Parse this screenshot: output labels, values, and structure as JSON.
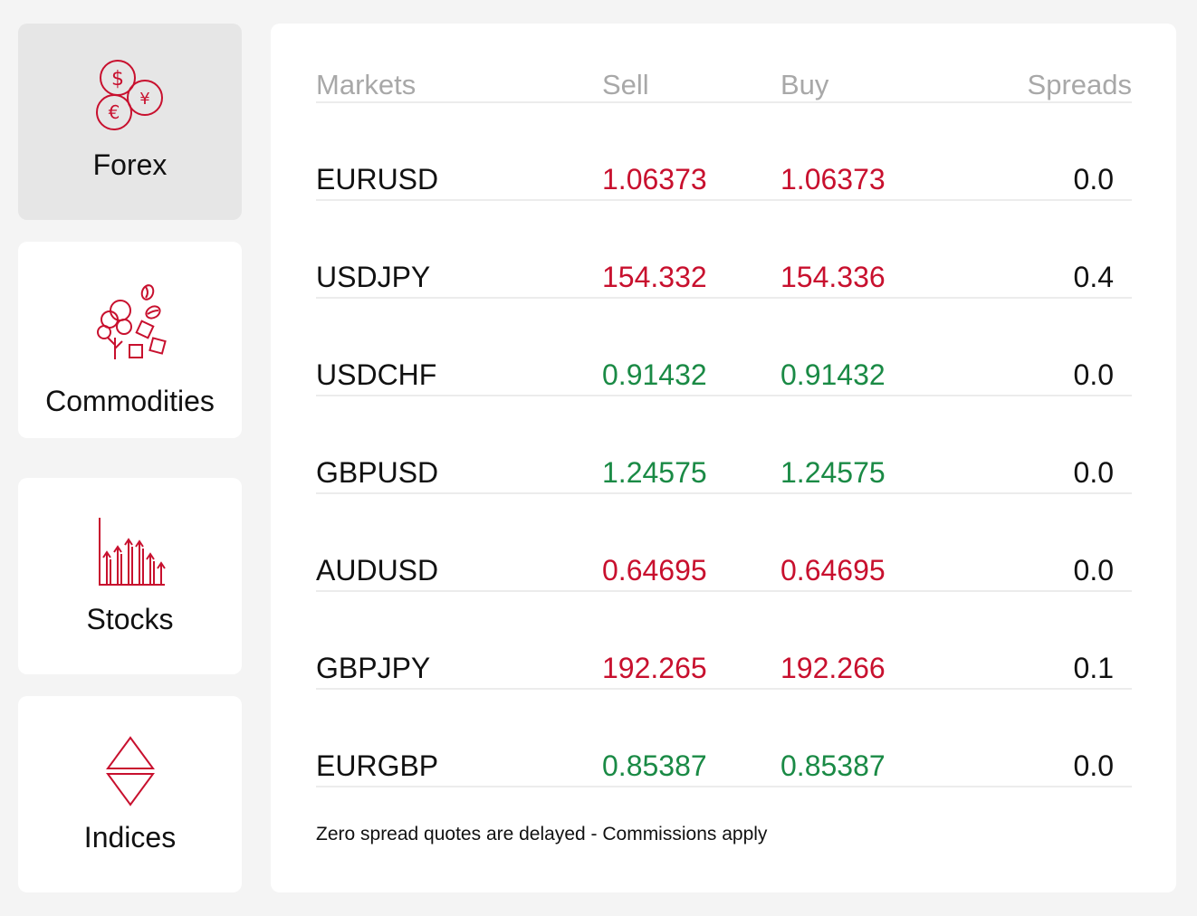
{
  "accent_color": "#c8102e",
  "up_color": "#1a8a45",
  "down_color": "#c8102e",
  "categories": [
    {
      "label": "Forex",
      "icon": "currency-coins-icon",
      "active": true
    },
    {
      "label": "Commodities",
      "icon": "commodities-icon",
      "active": false
    },
    {
      "label": "Stocks",
      "icon": "stocks-chart-icon",
      "active": false
    },
    {
      "label": "Indices",
      "icon": "up-down-triangles-icon",
      "active": false
    }
  ],
  "table": {
    "headers": {
      "markets": "Markets",
      "sell": "Sell",
      "buy": "Buy",
      "spreads": "Spreads"
    },
    "rows": [
      {
        "market": "EURUSD",
        "sell": "1.06373",
        "buy": "1.06373",
        "spread": "0.0",
        "direction": "down"
      },
      {
        "market": "USDJPY",
        "sell": "154.332",
        "buy": "154.336",
        "spread": "0.4",
        "direction": "down"
      },
      {
        "market": "USDCHF",
        "sell": "0.91432",
        "buy": "0.91432",
        "spread": "0.0",
        "direction": "up"
      },
      {
        "market": "GBPUSD",
        "sell": "1.24575",
        "buy": "1.24575",
        "spread": "0.0",
        "direction": "up"
      },
      {
        "market": "AUDUSD",
        "sell": "0.64695",
        "buy": "0.64695",
        "spread": "0.0",
        "direction": "down"
      },
      {
        "market": "GBPJPY",
        "sell": "192.265",
        "buy": "192.266",
        "spread": "0.1",
        "direction": "down"
      },
      {
        "market": "EURGBP",
        "sell": "0.85387",
        "buy": "0.85387",
        "spread": "0.0",
        "direction": "up"
      }
    ]
  },
  "footnote": "Zero spread quotes are delayed - Commissions apply"
}
